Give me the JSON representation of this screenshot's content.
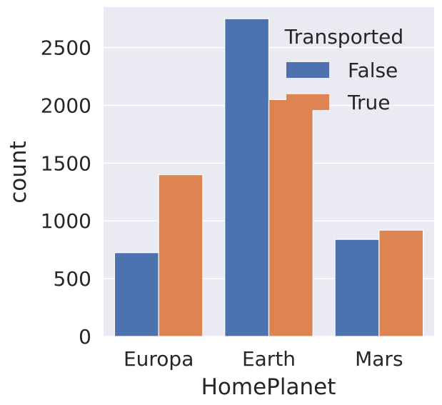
{
  "chart_data": {
    "type": "bar",
    "xlabel": "HomePlanet",
    "ylabel": "count",
    "categories": [
      "Europa",
      "Earth",
      "Mars"
    ],
    "series": [
      {
        "name": "False",
        "values": [
          725,
          2750,
          840
        ]
      },
      {
        "name": "True",
        "values": [
          1400,
          2050,
          920
        ]
      }
    ],
    "ylim": [
      0,
      2850
    ],
    "yticks": [
      0,
      500,
      1000,
      1500,
      2000,
      2500
    ],
    "legend": {
      "title": "Transported",
      "placement": "top-right"
    },
    "grid": true,
    "colors": {
      "background": "#EAEAF2",
      "grid": "#FFFFFF",
      "False": "#4C72B0",
      "True": "#DD8452"
    }
  }
}
